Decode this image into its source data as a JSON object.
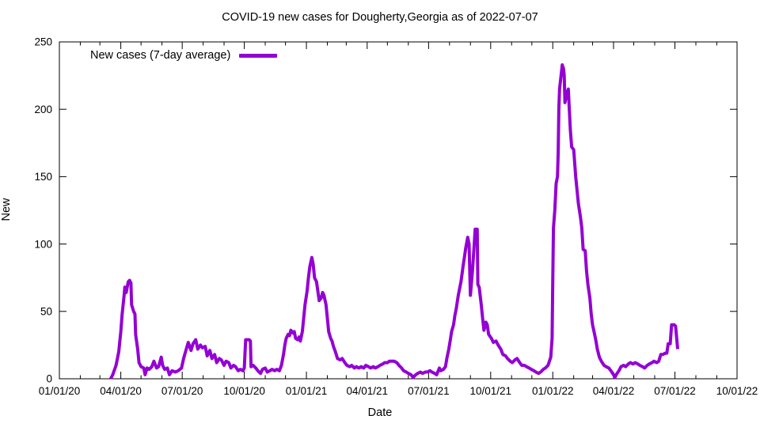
{
  "chart_data": {
    "type": "line",
    "title": "COVID-19 new cases for Dougherty,Georgia as of 2022-07-07",
    "xlabel": "Date",
    "ylabel": "New",
    "grid": false,
    "legend_position": "top-left-inside",
    "ylim": [
      0,
      250
    ],
    "y_ticks": [
      0,
      50,
      100,
      150,
      200,
      250
    ],
    "x_range_days": [
      0,
      1004
    ],
    "x_major_ticks": [
      {
        "day": 0,
        "label": "01/01/20"
      },
      {
        "day": 91,
        "label": "04/01/20"
      },
      {
        "day": 182,
        "label": "07/01/20"
      },
      {
        "day": 274,
        "label": "10/01/20"
      },
      {
        "day": 366,
        "label": "01/01/21"
      },
      {
        "day": 456,
        "label": "04/01/21"
      },
      {
        "day": 547,
        "label": "07/01/21"
      },
      {
        "day": 639,
        "label": "10/01/21"
      },
      {
        "day": 731,
        "label": "01/01/22"
      },
      {
        "day": 821,
        "label": "04/01/22"
      },
      {
        "day": 912,
        "label": "07/01/22"
      },
      {
        "day": 1004,
        "label": "10/01/22"
      }
    ],
    "x_minor_tick_days": [
      31,
      60,
      121,
      152,
      213,
      244,
      305,
      335,
      397,
      425,
      486,
      517,
      578,
      609,
      670,
      700,
      762,
      790,
      851,
      882,
      943,
      974
    ],
    "axis_color": "#000000",
    "series": [
      {
        "name": "New cases (7-day average)",
        "color": "#9400d3",
        "line_width": 4,
        "points": [
          [
            76,
            0
          ],
          [
            79,
            3
          ],
          [
            84,
            10
          ],
          [
            88,
            20
          ],
          [
            91,
            35
          ],
          [
            93,
            48
          ],
          [
            96,
            62
          ],
          [
            97,
            68
          ],
          [
            99,
            64
          ],
          [
            102,
            72
          ],
          [
            104,
            73
          ],
          [
            106,
            71
          ],
          [
            107,
            55
          ],
          [
            110,
            50
          ],
          [
            112,
            48
          ],
          [
            113,
            33
          ],
          [
            116,
            22
          ],
          [
            118,
            12
          ],
          [
            121,
            9
          ],
          [
            125,
            8
          ],
          [
            127,
            3
          ],
          [
            130,
            8
          ],
          [
            133,
            7
          ],
          [
            137,
            9
          ],
          [
            140,
            13
          ],
          [
            144,
            8
          ],
          [
            147,
            9
          ],
          [
            151,
            16
          ],
          [
            153,
            10
          ],
          [
            156,
            7
          ],
          [
            160,
            8
          ],
          [
            163,
            3
          ],
          [
            167,
            6
          ],
          [
            172,
            5
          ],
          [
            176,
            6
          ],
          [
            181,
            8
          ],
          [
            184,
            15
          ],
          [
            188,
            22
          ],
          [
            191,
            27
          ],
          [
            195,
            21
          ],
          [
            198,
            26
          ],
          [
            202,
            29
          ],
          [
            205,
            22
          ],
          [
            209,
            25
          ],
          [
            212,
            23
          ],
          [
            216,
            24
          ],
          [
            219,
            17
          ],
          [
            223,
            21
          ],
          [
            226,
            15
          ],
          [
            230,
            18
          ],
          [
            233,
            12
          ],
          [
            237,
            15
          ],
          [
            240,
            14
          ],
          [
            244,
            10
          ],
          [
            247,
            13
          ],
          [
            251,
            12
          ],
          [
            254,
            8
          ],
          [
            258,
            10
          ],
          [
            261,
            9
          ],
          [
            265,
            6
          ],
          [
            268,
            7
          ],
          [
            272,
            6
          ],
          [
            274,
            8
          ],
          [
            276,
            29
          ],
          [
            281,
            29
          ],
          [
            283,
            28
          ],
          [
            284,
            9
          ],
          [
            287,
            10
          ],
          [
            291,
            8
          ],
          [
            294,
            6
          ],
          [
            298,
            4
          ],
          [
            301,
            7
          ],
          [
            305,
            8
          ],
          [
            308,
            5
          ],
          [
            312,
            6
          ],
          [
            315,
            7
          ],
          [
            319,
            6
          ],
          [
            322,
            7
          ],
          [
            326,
            6
          ],
          [
            329,
            10
          ],
          [
            332,
            18
          ],
          [
            334,
            25
          ],
          [
            336,
            30
          ],
          [
            339,
            33
          ],
          [
            341,
            32
          ],
          [
            343,
            36
          ],
          [
            346,
            34
          ],
          [
            348,
            35
          ],
          [
            350,
            30
          ],
          [
            353,
            29
          ],
          [
            355,
            31
          ],
          [
            357,
            28
          ],
          [
            360,
            35
          ],
          [
            362,
            45
          ],
          [
            364,
            55
          ],
          [
            367,
            65
          ],
          [
            369,
            75
          ],
          [
            371,
            83
          ],
          [
            374,
            90
          ],
          [
            376,
            85
          ],
          [
            378,
            75
          ],
          [
            381,
            72
          ],
          [
            383,
            65
          ],
          [
            385,
            58
          ],
          [
            388,
            60
          ],
          [
            390,
            64
          ],
          [
            392,
            62
          ],
          [
            395,
            55
          ],
          [
            397,
            45
          ],
          [
            399,
            35
          ],
          [
            402,
            30
          ],
          [
            404,
            28
          ],
          [
            406,
            24
          ],
          [
            409,
            20
          ],
          [
            412,
            15
          ],
          [
            416,
            14
          ],
          [
            419,
            15
          ],
          [
            423,
            12
          ],
          [
            426,
            10
          ],
          [
            430,
            9
          ],
          [
            433,
            10
          ],
          [
            437,
            8
          ],
          [
            440,
            9
          ],
          [
            444,
            8
          ],
          [
            447,
            9
          ],
          [
            451,
            8
          ],
          [
            454,
            10
          ],
          [
            458,
            9
          ],
          [
            461,
            8
          ],
          [
            465,
            9
          ],
          [
            468,
            8
          ],
          [
            472,
            9
          ],
          [
            475,
            10
          ],
          [
            479,
            11
          ],
          [
            482,
            12
          ],
          [
            486,
            12
          ],
          [
            489,
            13
          ],
          [
            493,
            13
          ],
          [
            496,
            13
          ],
          [
            500,
            12
          ],
          [
            503,
            10
          ],
          [
            507,
            8
          ],
          [
            510,
            6
          ],
          [
            514,
            5
          ],
          [
            517,
            4
          ],
          [
            521,
            3
          ],
          [
            524,
            1
          ],
          [
            528,
            3
          ],
          [
            531,
            4
          ],
          [
            535,
            5
          ],
          [
            538,
            4
          ],
          [
            542,
            5
          ],
          [
            545,
            5
          ],
          [
            549,
            6
          ],
          [
            552,
            5
          ],
          [
            556,
            4
          ],
          [
            559,
            3
          ],
          [
            563,
            8
          ],
          [
            565,
            6
          ],
          [
            569,
            7
          ],
          [
            572,
            9
          ],
          [
            574,
            15
          ],
          [
            577,
            22
          ],
          [
            579,
            28
          ],
          [
            581,
            35
          ],
          [
            584,
            40
          ],
          [
            586,
            47
          ],
          [
            588,
            52
          ],
          [
            591,
            62
          ],
          [
            593,
            67
          ],
          [
            595,
            72
          ],
          [
            598,
            83
          ],
          [
            600,
            90
          ],
          [
            602,
            97
          ],
          [
            605,
            105
          ],
          [
            607,
            100
          ],
          [
            609,
            62
          ],
          [
            612,
            80
          ],
          [
            614,
            95
          ],
          [
            616,
            111
          ],
          [
            619,
            111
          ],
          [
            620,
            70
          ],
          [
            622,
            68
          ],
          [
            625,
            55
          ],
          [
            627,
            45
          ],
          [
            629,
            36
          ],
          [
            632,
            42
          ],
          [
            634,
            40
          ],
          [
            636,
            33
          ],
          [
            640,
            30
          ],
          [
            643,
            27
          ],
          [
            647,
            28
          ],
          [
            650,
            25
          ],
          [
            654,
            22
          ],
          [
            657,
            18
          ],
          [
            661,
            17
          ],
          [
            664,
            15
          ],
          [
            668,
            13
          ],
          [
            671,
            12
          ],
          [
            675,
            14
          ],
          [
            678,
            15
          ],
          [
            682,
            12
          ],
          [
            685,
            10
          ],
          [
            689,
            10
          ],
          [
            692,
            9
          ],
          [
            696,
            8
          ],
          [
            699,
            7
          ],
          [
            703,
            6
          ],
          [
            706,
            5
          ],
          [
            710,
            4
          ],
          [
            713,
            5
          ],
          [
            717,
            7
          ],
          [
            720,
            8
          ],
          [
            724,
            10
          ],
          [
            726,
            13
          ],
          [
            728,
            16
          ],
          [
            730,
            30
          ],
          [
            731,
            71
          ],
          [
            732,
            112
          ],
          [
            734,
            125
          ],
          [
            736,
            145
          ],
          [
            738,
            150
          ],
          [
            739,
            168
          ],
          [
            740,
            200
          ],
          [
            741,
            215
          ],
          [
            744,
            228
          ],
          [
            745,
            233
          ],
          [
            747,
            230
          ],
          [
            748,
            225
          ],
          [
            749,
            205
          ],
          [
            752,
            212
          ],
          [
            754,
            215
          ],
          [
            755,
            205
          ],
          [
            757,
            185
          ],
          [
            759,
            172
          ],
          [
            762,
            170
          ],
          [
            765,
            150
          ],
          [
            767,
            140
          ],
          [
            769,
            130
          ],
          [
            772,
            120
          ],
          [
            774,
            112
          ],
          [
            776,
            96
          ],
          [
            779,
            95
          ],
          [
            781,
            80
          ],
          [
            783,
            70
          ],
          [
            786,
            60
          ],
          [
            788,
            48
          ],
          [
            790,
            40
          ],
          [
            793,
            33
          ],
          [
            795,
            28
          ],
          [
            797,
            22
          ],
          [
            800,
            16
          ],
          [
            803,
            13
          ],
          [
            807,
            10
          ],
          [
            810,
            9
          ],
          [
            814,
            8
          ],
          [
            817,
            6
          ],
          [
            821,
            3
          ],
          [
            823,
            1
          ],
          [
            825,
            3
          ],
          [
            829,
            6
          ],
          [
            832,
            9
          ],
          [
            836,
            10
          ],
          [
            839,
            9
          ],
          [
            843,
            11
          ],
          [
            846,
            12
          ],
          [
            850,
            11
          ],
          [
            853,
            12
          ],
          [
            857,
            11
          ],
          [
            860,
            10
          ],
          [
            864,
            9
          ],
          [
            867,
            8
          ],
          [
            871,
            10
          ],
          [
            874,
            11
          ],
          [
            878,
            12
          ],
          [
            881,
            13
          ],
          [
            885,
            12
          ],
          [
            888,
            13
          ],
          [
            891,
            18
          ],
          [
            894,
            18
          ],
          [
            898,
            19
          ],
          [
            900,
            19
          ],
          [
            902,
            26
          ],
          [
            905,
            26
          ],
          [
            907,
            40
          ],
          [
            911,
            40
          ],
          [
            913,
            39
          ],
          [
            916,
            22
          ]
        ]
      }
    ]
  }
}
